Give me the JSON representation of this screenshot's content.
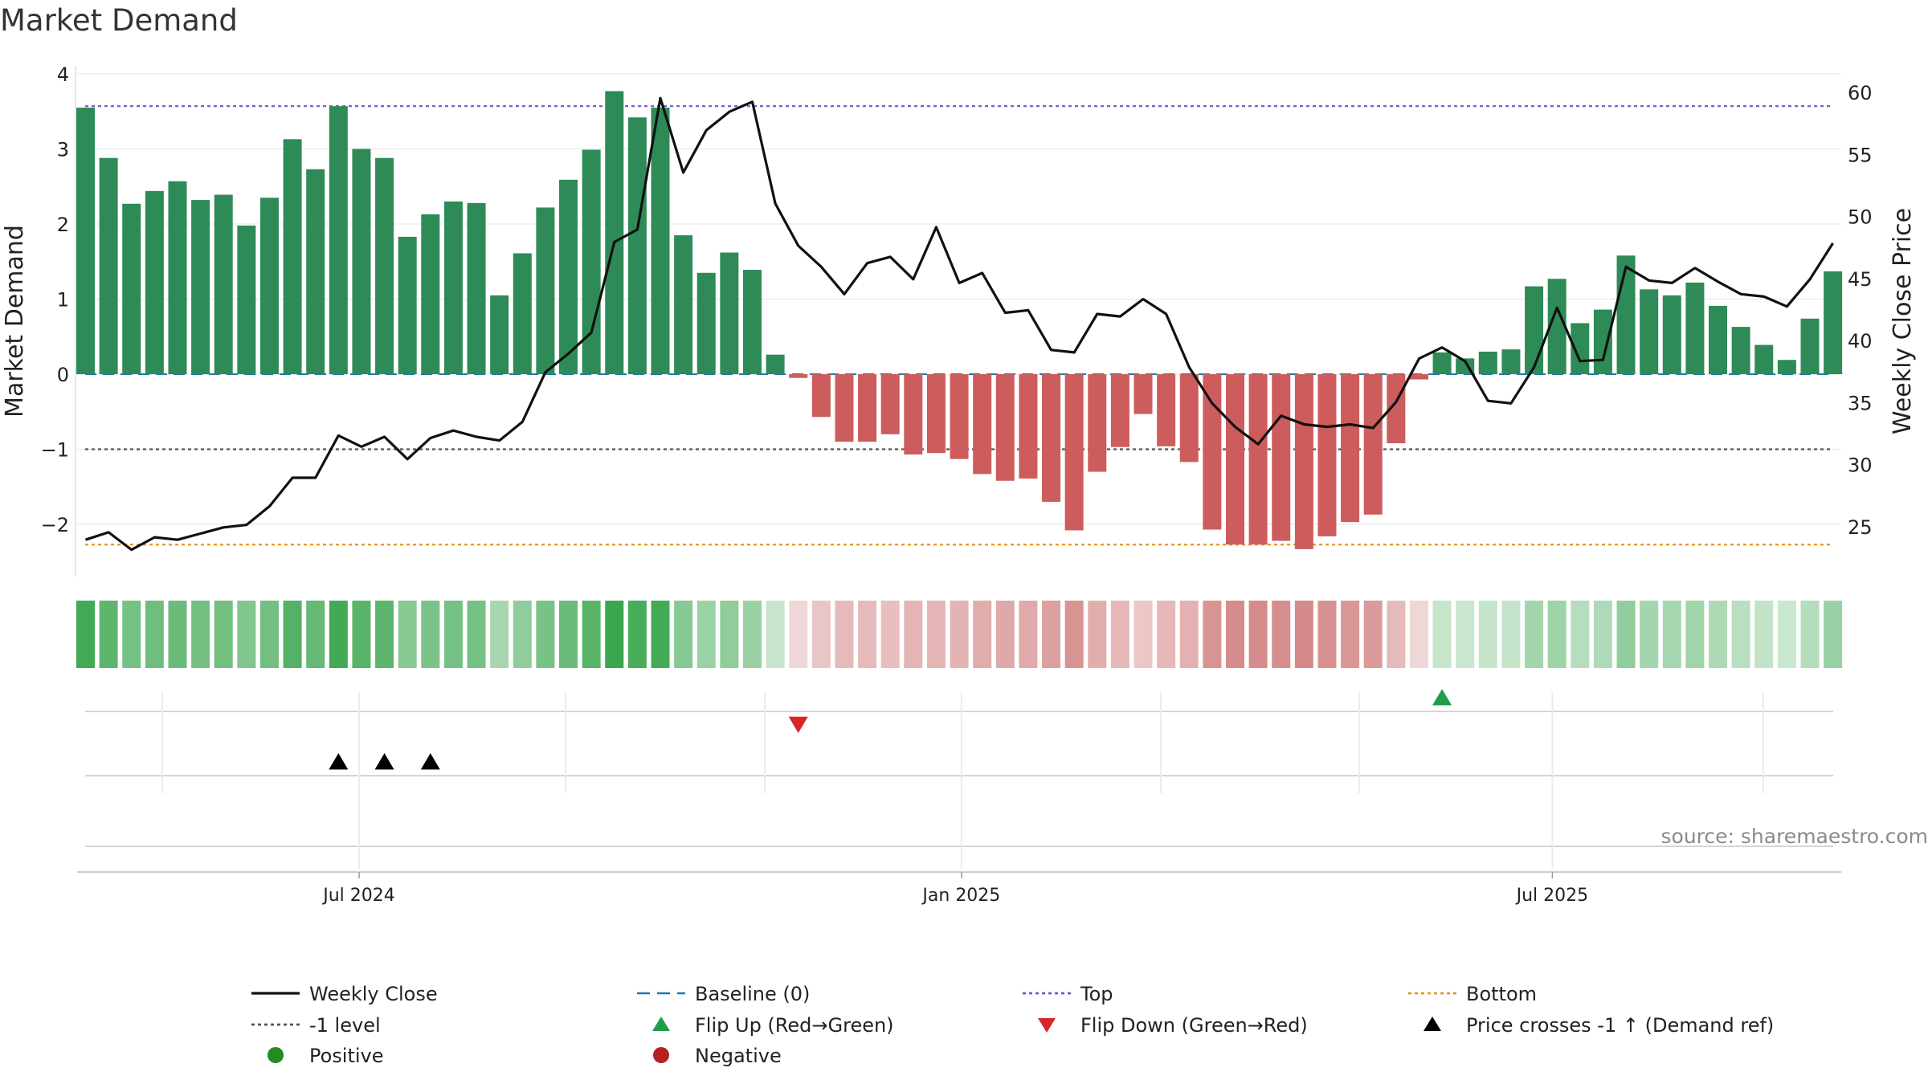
{
  "title": "Market Demand",
  "source": "source: sharemaestro.com",
  "colors": {
    "positive": "#2e8b57",
    "negative": "#cd5c5c",
    "price": "#111111",
    "baseline": "#1f77b4",
    "top": "#6a5acd",
    "bottom": "#e69522",
    "minus_one": "#555555",
    "flip_up": "#1e9e4a",
    "flip_down": "#d62728",
    "cross": "#000000",
    "legend_positive": "#228b22",
    "legend_negative": "#b22222"
  },
  "chart_data": {
    "type": "bar",
    "title": "Market Demand",
    "ylabel": "Market Demand",
    "y2label": "Weekly Close Price",
    "ylim": [
      -2.6,
      4.0
    ],
    "y_ticks": [
      -2,
      -1,
      0,
      1,
      2,
      3,
      4
    ],
    "y_tick_labels": [
      "−2",
      "−1",
      "0",
      "1",
      "2",
      "3",
      "4"
    ],
    "y2lim": [
      22.5,
      61.5
    ],
    "y2_ticks": [
      25,
      30,
      35,
      40,
      45,
      50,
      55,
      60
    ],
    "y2_tick_labels": [
      "25",
      "30",
      "35",
      "40",
      "45",
      "50",
      "55",
      "60"
    ],
    "x_tick_labels": [
      "Jul 2024",
      "Jan 2025",
      "Jul 2025"
    ],
    "x_tick_index": [
      12.3,
      38.5,
      64.2
    ],
    "reference_lines": {
      "baseline": 0,
      "top": 3.57,
      "bottom": -2.27,
      "minus_one": -1
    },
    "demand": [
      3.55,
      2.88,
      2.27,
      2.44,
      2.57,
      2.32,
      2.39,
      1.98,
      2.35,
      3.13,
      2.73,
      3.57,
      3.0,
      2.88,
      1.83,
      2.13,
      2.3,
      2.28,
      1.05,
      1.61,
      2.22,
      2.59,
      2.99,
      3.77,
      3.42,
      3.55,
      1.85,
      1.35,
      1.62,
      1.39,
      0.26,
      -0.05,
      -0.57,
      -0.9,
      -0.9,
      -0.8,
      -1.07,
      -1.05,
      -1.13,
      -1.33,
      -1.42,
      -1.39,
      -1.7,
      -2.08,
      -1.3,
      -0.97,
      -0.53,
      -0.96,
      -1.17,
      -2.07,
      -2.27,
      -2.27,
      -2.22,
      -2.33,
      -2.16,
      -1.97,
      -1.87,
      -0.92,
      -0.07,
      0.29,
      0.21,
      0.3,
      0.33,
      1.17,
      1.27,
      0.68,
      0.86,
      1.58,
      1.13,
      1.05,
      1.22,
      0.91,
      0.63,
      0.39,
      0.19,
      0.74,
      1.37
    ],
    "price": [
      24.0,
      24.6,
      23.2,
      24.2,
      24.0,
      24.5,
      25.0,
      25.2,
      26.7,
      29.0,
      29.0,
      32.4,
      31.5,
      32.3,
      30.5,
      32.2,
      32.8,
      32.3,
      32.0,
      33.5,
      37.5,
      39.0,
      40.7,
      48.0,
      49.0,
      59.6,
      53.6,
      57.0,
      58.5,
      59.3,
      51.1,
      47.7,
      46.0,
      43.8,
      46.3,
      46.8,
      45.0,
      49.2,
      44.7,
      45.5,
      42.3,
      42.5,
      39.3,
      39.1,
      42.2,
      42.0,
      43.4,
      42.2,
      37.9,
      35.0,
      33.1,
      31.7,
      34.0,
      33.3,
      33.1,
      33.3,
      33.0,
      35.1,
      38.6,
      39.5,
      38.4,
      35.2,
      35.0,
      37.9,
      42.7,
      38.4,
      38.5,
      46.0,
      44.9,
      44.7,
      45.9,
      44.8,
      43.8,
      43.6,
      42.8,
      45.0,
      47.9
    ],
    "flip_up_index": [
      59
    ],
    "flip_down_index": [
      31
    ],
    "cross_index": [
      11,
      13,
      15
    ],
    "legend": [
      {
        "label": "Weekly Close",
        "marker": "solid-line",
        "color": "#111111"
      },
      {
        "label": "Baseline (0)",
        "marker": "long-dash",
        "color": "#1f77b4"
      },
      {
        "label": "Top",
        "marker": "dotted-line",
        "color": "#6a5acd"
      },
      {
        "label": "Bottom",
        "marker": "dotted-line",
        "color": "#e69522"
      },
      {
        "label": "-1 level",
        "marker": "dotted-line",
        "color": "#555555"
      },
      {
        "label": "Flip Up (Red→Green)",
        "marker": "triangle-up",
        "color": "#1e9e4a"
      },
      {
        "label": "Flip Down (Green→Red)",
        "marker": "triangle-down",
        "color": "#d62728"
      },
      {
        "label": "Price crosses -1 ↑ (Demand ref)",
        "marker": "triangle-up",
        "color": "#000000"
      },
      {
        "label": "Positive",
        "marker": "circle",
        "color": "#228b22"
      },
      {
        "label": "Negative",
        "marker": "circle",
        "color": "#b22222"
      }
    ]
  }
}
